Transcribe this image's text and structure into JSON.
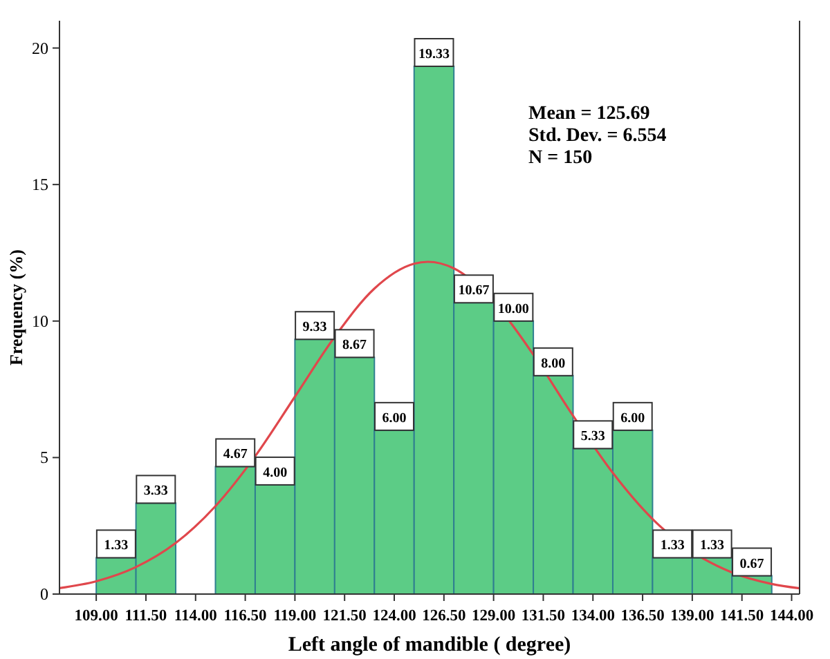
{
  "chart_data": {
    "type": "histogram",
    "xlabel": "Left angle of mandible ( degree)",
    "ylabel": "Frequency (%)",
    "annotations": [
      "Mean = 125.69",
      "Std. Dev. = 6.554",
      "N = 150"
    ],
    "bins": [
      109,
      111,
      113,
      115,
      117,
      119,
      121,
      123,
      125,
      127,
      129,
      131,
      133,
      135,
      137,
      139,
      141,
      143
    ],
    "series": [
      {
        "color": "#5ccc86",
        "values": [
          1.33,
          3.33,
          0,
          4.67,
          4.0,
          9.33,
          8.67,
          6.0,
          19.33,
          10.67,
          10.0,
          8.0,
          5.33,
          6.0,
          1.33,
          1.33,
          0.67
        ],
        "value_labels": [
          "1.33",
          "3.33",
          null,
          "4.67",
          "4.00",
          "9.33",
          "8.67",
          "6.00",
          "19.33",
          "10.67",
          "10.00",
          "8.00",
          "5.33",
          "6.00",
          "1.33",
          "1.33",
          "0.67"
        ]
      },
      {
        "type": "line",
        "color": "#e0474c",
        "x": [
          107.15,
          109,
          111,
          113,
          115,
          117,
          119,
          121,
          123,
          125,
          125.69,
          127,
          129,
          131,
          133,
          135,
          137,
          139,
          141,
          143,
          144.4
        ],
        "values": [
          0.22,
          0.47,
          0.99,
          1.87,
          3.22,
          5.05,
          7.23,
          9.42,
          11.19,
          12.1,
          12.17,
          11.93,
          10.71,
          8.77,
          6.53,
          4.44,
          2.75,
          1.55,
          0.79,
          0.37,
          0.21
        ]
      }
    ],
    "xlim": [
      107.15,
      144.4
    ],
    "ylim": [
      0,
      21
    ],
    "xticks": [
      {
        "value": 109,
        "label": "109.00"
      },
      {
        "value": 111.5,
        "label": "111.50"
      },
      {
        "value": 114,
        "label": "114.00"
      },
      {
        "value": 116.5,
        "label": "116.50"
      },
      {
        "value": 119,
        "label": "119.00"
      },
      {
        "value": 121.5,
        "label": "121.50"
      },
      {
        "value": 124,
        "label": "124.00"
      },
      {
        "value": 126.5,
        "label": "126.50"
      },
      {
        "value": 129,
        "label": "129.00"
      },
      {
        "value": 131.5,
        "label": "131.50"
      },
      {
        "value": 134,
        "label": "134.00"
      },
      {
        "value": 136.5,
        "label": "136.50"
      },
      {
        "value": 139,
        "label": "139.00"
      },
      {
        "value": 141.5,
        "label": "141.50"
      },
      {
        "value": 144,
        "label": "144.00"
      }
    ],
    "yticks": [
      0,
      5,
      10,
      15,
      20
    ]
  }
}
